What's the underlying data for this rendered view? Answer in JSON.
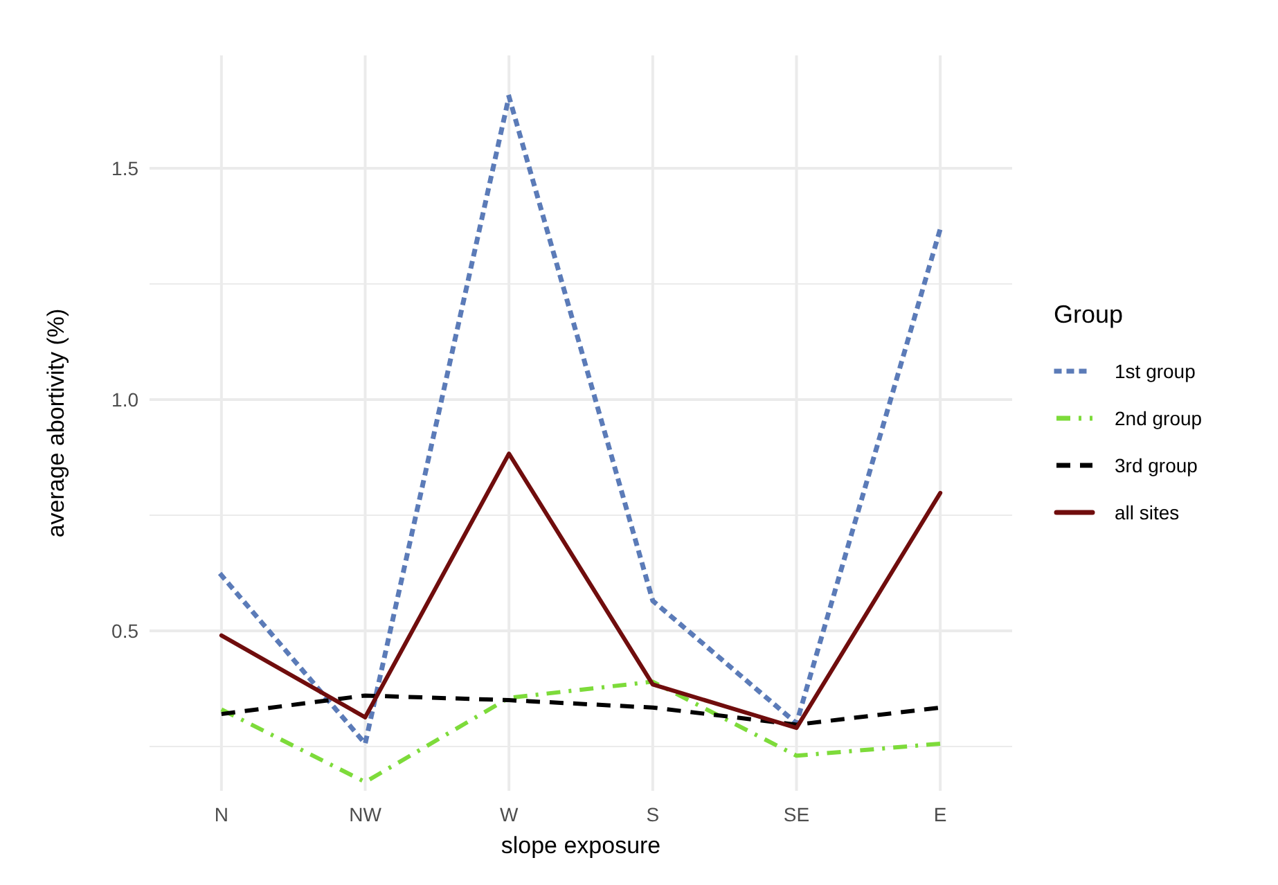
{
  "chart_data": {
    "type": "line",
    "xlabel": "slope exposure",
    "ylabel": "average abortivity (%)",
    "legend_title": "Group",
    "legend": "right",
    "grid": true,
    "marker": "none",
    "categories": [
      "N",
      "NW",
      "W",
      "S",
      "SE",
      "E"
    ],
    "ylim": [
      0.154,
      1.744
    ],
    "yticks": [
      {
        "value": 0.25,
        "label": null
      },
      {
        "value": 0.5,
        "label": "0.5"
      },
      {
        "value": 0.75,
        "label": null
      },
      {
        "value": 1.0,
        "label": "1.0"
      },
      {
        "value": 1.25,
        "label": null
      },
      {
        "value": 1.5,
        "label": "1.5"
      }
    ],
    "series": [
      {
        "name": "1st group",
        "color": "#5b7bb8",
        "line_style": "dotted",
        "values": [
          0.62,
          0.256,
          1.655,
          0.565,
          0.3,
          1.369
        ]
      },
      {
        "name": "2nd group",
        "color": "#7ddb3a",
        "line_style": "dashdot",
        "values": [
          0.33,
          0.173,
          0.355,
          0.39,
          0.23,
          0.256
        ]
      },
      {
        "name": "3rd group",
        "color": "#000000",
        "line_style": "dashed",
        "values": [
          0.32,
          0.36,
          0.35,
          0.334,
          0.297,
          0.334
        ]
      },
      {
        "name": "all sites",
        "color": "#700d0d",
        "line_style": "solid",
        "values": [
          0.49,
          0.313,
          0.883,
          0.384,
          0.29,
          0.798
        ]
      }
    ]
  }
}
